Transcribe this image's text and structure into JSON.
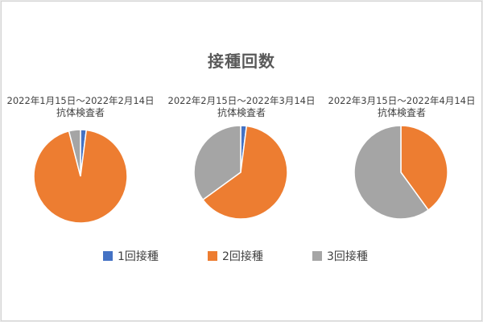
{
  "chart_data": {
    "type": "pie",
    "title": "接種回数",
    "legend": {
      "placement": "bottom",
      "entries": [
        "1回接種",
        "2回接種",
        "3回接種"
      ]
    },
    "colors": [
      "#4472C4",
      "#ED7D31",
      "#A5A5A5"
    ],
    "charts": [
      {
        "range": "2022年1月15日～2022年2月14日",
        "method": "抗体検査者",
        "series": [
          {
            "name": "1回接種",
            "value": 2
          },
          {
            "name": "2回接種",
            "value": 94
          },
          {
            "name": "3回接種",
            "value": 4
          }
        ]
      },
      {
        "range": "2022年2月15日～2022年3月14日",
        "method": "抗体検査者",
        "series": [
          {
            "name": "1回接種",
            "value": 2
          },
          {
            "name": "2回接種",
            "value": 63
          },
          {
            "name": "3回接種",
            "value": 35
          }
        ]
      },
      {
        "range": "2022年3月15日～2022年4月14日",
        "method": "抗体検査者",
        "series": [
          {
            "name": "1回接種",
            "value": 0
          },
          {
            "name": "2回接種",
            "value": 40
          },
          {
            "name": "3回接種",
            "value": 60
          }
        ]
      }
    ]
  }
}
